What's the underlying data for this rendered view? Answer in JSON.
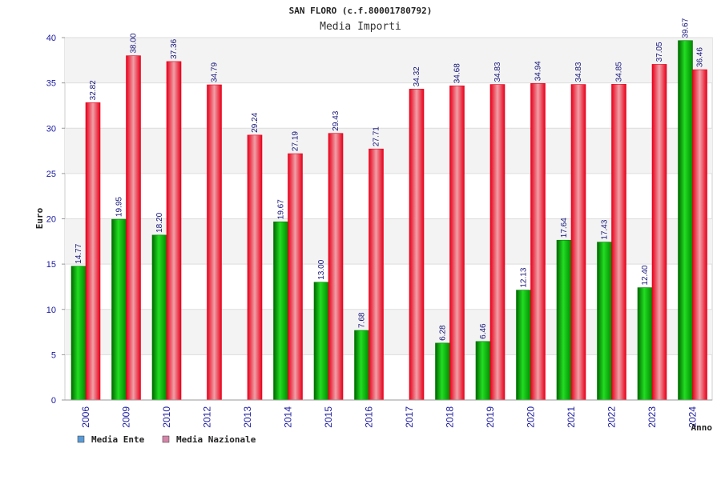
{
  "chart_data": {
    "type": "bar",
    "title": "SAN FLORO (c.f.80001780792)",
    "subtitle": "Media Importi",
    "xlabel": "Anno",
    "ylabel": "Euro",
    "ylim": [
      0,
      40
    ],
    "yticks": [
      0,
      5,
      10,
      15,
      20,
      25,
      30,
      35,
      40
    ],
    "categories": [
      "2006",
      "2009",
      "2010",
      "2012",
      "2013",
      "2014",
      "2015",
      "2016",
      "2017",
      "2018",
      "2019",
      "2020",
      "2021",
      "2022",
      "2023",
      "2024"
    ],
    "series": [
      {
        "name": "Media Ente",
        "color": "#00b000",
        "values": [
          14.77,
          19.95,
          18.2,
          null,
          null,
          19.67,
          13.0,
          7.68,
          null,
          6.28,
          6.46,
          12.13,
          17.64,
          17.43,
          12.4,
          39.67
        ],
        "labels": [
          "14.77",
          "19.95",
          "18.20",
          "",
          "",
          "19.67",
          "13.00",
          "7.68",
          "",
          "6.28",
          "6.46",
          "12.13",
          "17.64",
          "17.43",
          "12.40",
          "39.67"
        ]
      },
      {
        "name": "Media Nazionale",
        "color": "#e8101a",
        "values": [
          32.82,
          38.0,
          37.36,
          34.79,
          29.24,
          27.19,
          29.43,
          27.71,
          34.32,
          34.68,
          34.83,
          34.94,
          34.83,
          34.85,
          37.05,
          36.46
        ],
        "labels": [
          "32.82",
          "38.00",
          "37.36",
          "34.79",
          "29.24",
          "27.19",
          "29.43",
          "27.71",
          "34.32",
          "34.68",
          "34.83",
          "34.94",
          "34.83",
          "34.85",
          "37.05",
          "36.46"
        ]
      }
    ],
    "grid": true,
    "legend": {
      "position": "bottom-left",
      "items": [
        {
          "name": "Media Ente",
          "swatch_color": "#5b9bd5"
        },
        {
          "name": "Media Nazionale",
          "swatch_color": "#d486a8"
        }
      ]
    }
  }
}
